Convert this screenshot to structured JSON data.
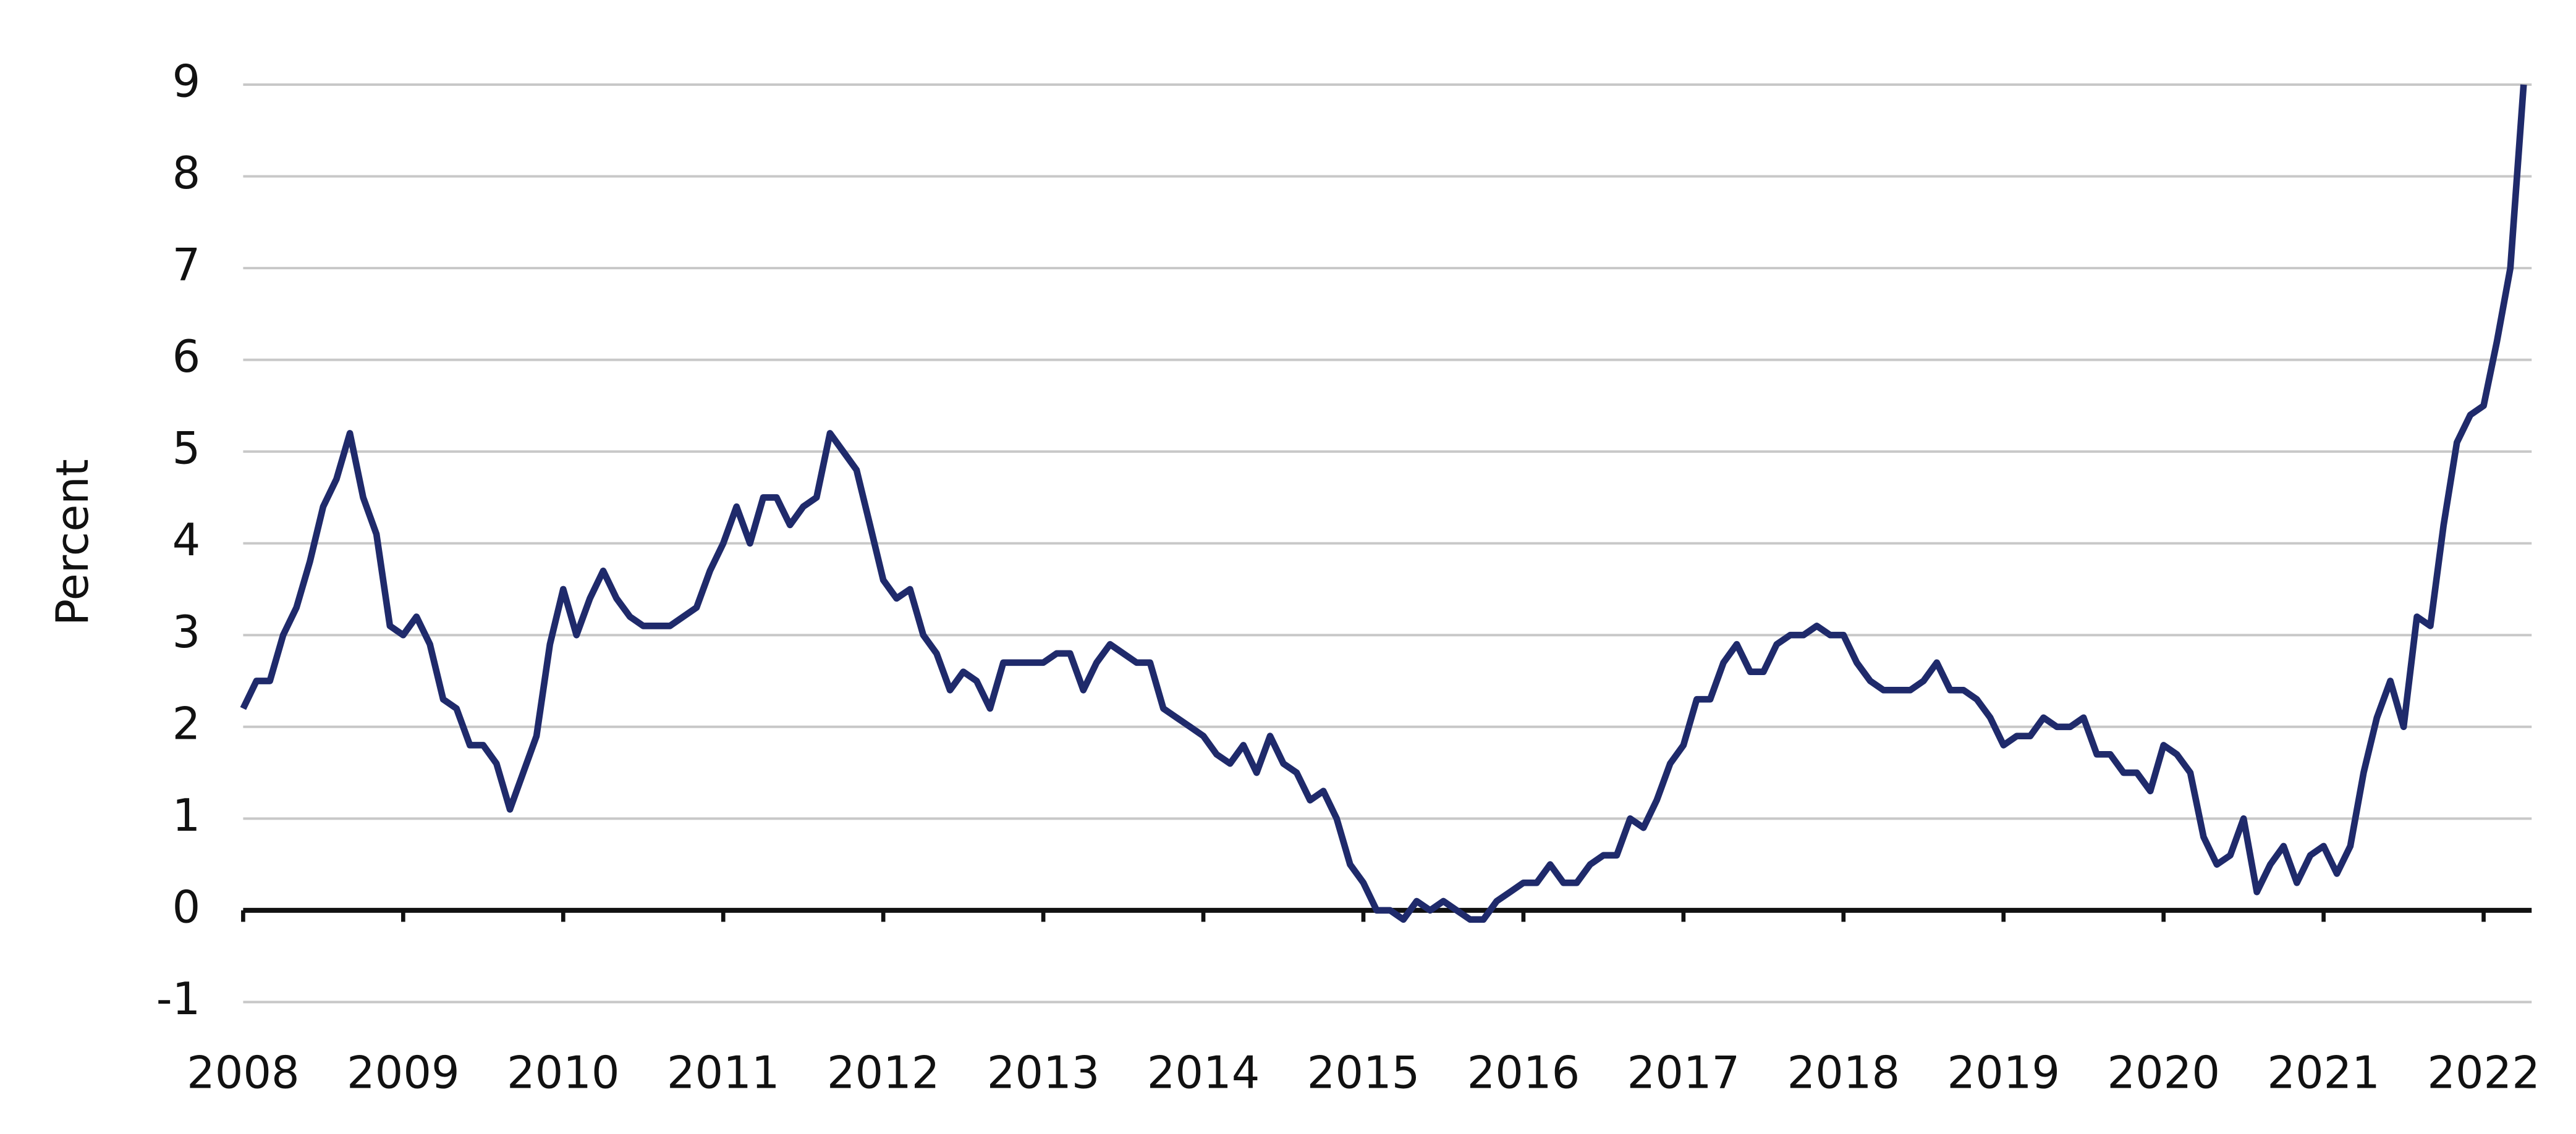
{
  "chart_data": {
    "type": "line",
    "y_label": "Percent",
    "x": [
      2008,
      2008.083,
      2008.167,
      2008.25,
      2008.333,
      2008.417,
      2008.5,
      2008.583,
      2008.667,
      2008.75,
      2008.833,
      2008.917,
      2009,
      2009.083,
      2009.167,
      2009.25,
      2009.333,
      2009.417,
      2009.5,
      2009.583,
      2009.667,
      2009.75,
      2009.833,
      2009.917,
      2010,
      2010.083,
      2010.167,
      2010.25,
      2010.333,
      2010.417,
      2010.5,
      2010.583,
      2010.667,
      2010.75,
      2010.833,
      2010.917,
      2011,
      2011.083,
      2011.167,
      2011.25,
      2011.333,
      2011.417,
      2011.5,
      2011.583,
      2011.667,
      2011.75,
      2011.833,
      2011.917,
      2012,
      2012.083,
      2012.167,
      2012.25,
      2012.333,
      2012.417,
      2012.5,
      2012.583,
      2012.667,
      2012.75,
      2012.833,
      2012.917,
      2013,
      2013.083,
      2013.167,
      2013.25,
      2013.333,
      2013.417,
      2013.5,
      2013.583,
      2013.667,
      2013.75,
      2013.833,
      2013.917,
      2014,
      2014.083,
      2014.167,
      2014.25,
      2014.333,
      2014.417,
      2014.5,
      2014.583,
      2014.667,
      2014.75,
      2014.833,
      2014.917,
      2015,
      2015.083,
      2015.167,
      2015.25,
      2015.333,
      2015.417,
      2015.5,
      2015.583,
      2015.667,
      2015.75,
      2015.833,
      2015.917,
      2016,
      2016.083,
      2016.167,
      2016.25,
      2016.333,
      2016.417,
      2016.5,
      2016.583,
      2016.667,
      2016.75,
      2016.833,
      2016.917,
      2017,
      2017.083,
      2017.167,
      2017.25,
      2017.333,
      2017.417,
      2017.5,
      2017.583,
      2017.667,
      2017.75,
      2017.833,
      2017.917,
      2018,
      2018.083,
      2018.167,
      2018.25,
      2018.333,
      2018.417,
      2018.5,
      2018.583,
      2018.667,
      2018.75,
      2018.833,
      2018.917,
      2019,
      2019.083,
      2019.167,
      2019.25,
      2019.333,
      2019.417,
      2019.5,
      2019.583,
      2019.667,
      2019.75,
      2019.833,
      2019.917,
      2020,
      2020.083,
      2020.167,
      2020.25,
      2020.333,
      2020.417,
      2020.5,
      2020.583,
      2020.667,
      2020.75,
      2020.833,
      2020.917,
      2021,
      2021.083,
      2021.167,
      2021.25,
      2021.333,
      2021.417,
      2021.5,
      2021.583,
      2021.667,
      2021.75,
      2021.833,
      2021.917,
      2022,
      2022.083,
      2022.167,
      2022.25
    ],
    "series": [
      {
        "color": "#1f2a6b",
        "values": [
          2.2,
          2.5,
          2.5,
          3.0,
          3.3,
          3.8,
          4.4,
          4.7,
          5.2,
          4.5,
          4.1,
          3.1,
          3.0,
          3.2,
          2.9,
          2.3,
          2.2,
          1.8,
          1.8,
          1.6,
          1.1,
          1.5,
          1.9,
          2.9,
          3.5,
          3.0,
          3.4,
          3.7,
          3.4,
          3.2,
          3.1,
          3.1,
          3.1,
          3.2,
          3.3,
          3.7,
          4.0,
          4.4,
          4.0,
          4.5,
          4.5,
          4.2,
          4.4,
          4.5,
          5.2,
          5.0,
          4.8,
          4.2,
          3.6,
          3.4,
          3.5,
          3.0,
          2.8,
          2.4,
          2.6,
          2.5,
          2.2,
          2.7,
          2.7,
          2.7,
          2.7,
          2.8,
          2.8,
          2.4,
          2.7,
          2.9,
          2.8,
          2.7,
          2.7,
          2.2,
          2.1,
          2.0,
          1.9,
          1.7,
          1.6,
          1.8,
          1.5,
          1.9,
          1.6,
          1.5,
          1.2,
          1.3,
          1.0,
          0.5,
          0.3,
          0.0,
          0.0,
          -0.1,
          0.1,
          0.0,
          0.1,
          0.0,
          -0.1,
          -0.1,
          0.1,
          0.2,
          0.3,
          0.3,
          0.5,
          0.3,
          0.3,
          0.5,
          0.6,
          0.6,
          1.0,
          0.9,
          1.2,
          1.6,
          1.8,
          2.3,
          2.3,
          2.7,
          2.9,
          2.6,
          2.6,
          2.9,
          3.0,
          3.0,
          3.1,
          3.0,
          3.0,
          2.7,
          2.5,
          2.4,
          2.4,
          2.4,
          2.5,
          2.7,
          2.4,
          2.4,
          2.3,
          2.1,
          1.8,
          1.9,
          1.9,
          2.1,
          2.0,
          2.0,
          2.1,
          1.7,
          1.7,
          1.5,
          1.5,
          1.3,
          1.8,
          1.7,
          1.5,
          0.8,
          0.5,
          0.6,
          1.0,
          0.2,
          0.5,
          0.7,
          0.3,
          0.6,
          0.7,
          0.4,
          0.7,
          1.5,
          2.1,
          2.5,
          2.0,
          3.2,
          3.1,
          4.2,
          5.1,
          5.4,
          5.5,
          6.2,
          7.0,
          9.0
        ]
      }
    ],
    "xlim": [
      2008,
      2022.3
    ],
    "xticks": [
      2008,
      2009,
      2010,
      2011,
      2012,
      2013,
      2014,
      2015,
      2016,
      2017,
      2018,
      2019,
      2020,
      2021,
      2022
    ],
    "ylim": [
      -1,
      9.2
    ],
    "yticks": [
      -1,
      0,
      1,
      2,
      3,
      4,
      5,
      6,
      7,
      8,
      9
    ],
    "grid": true
  }
}
